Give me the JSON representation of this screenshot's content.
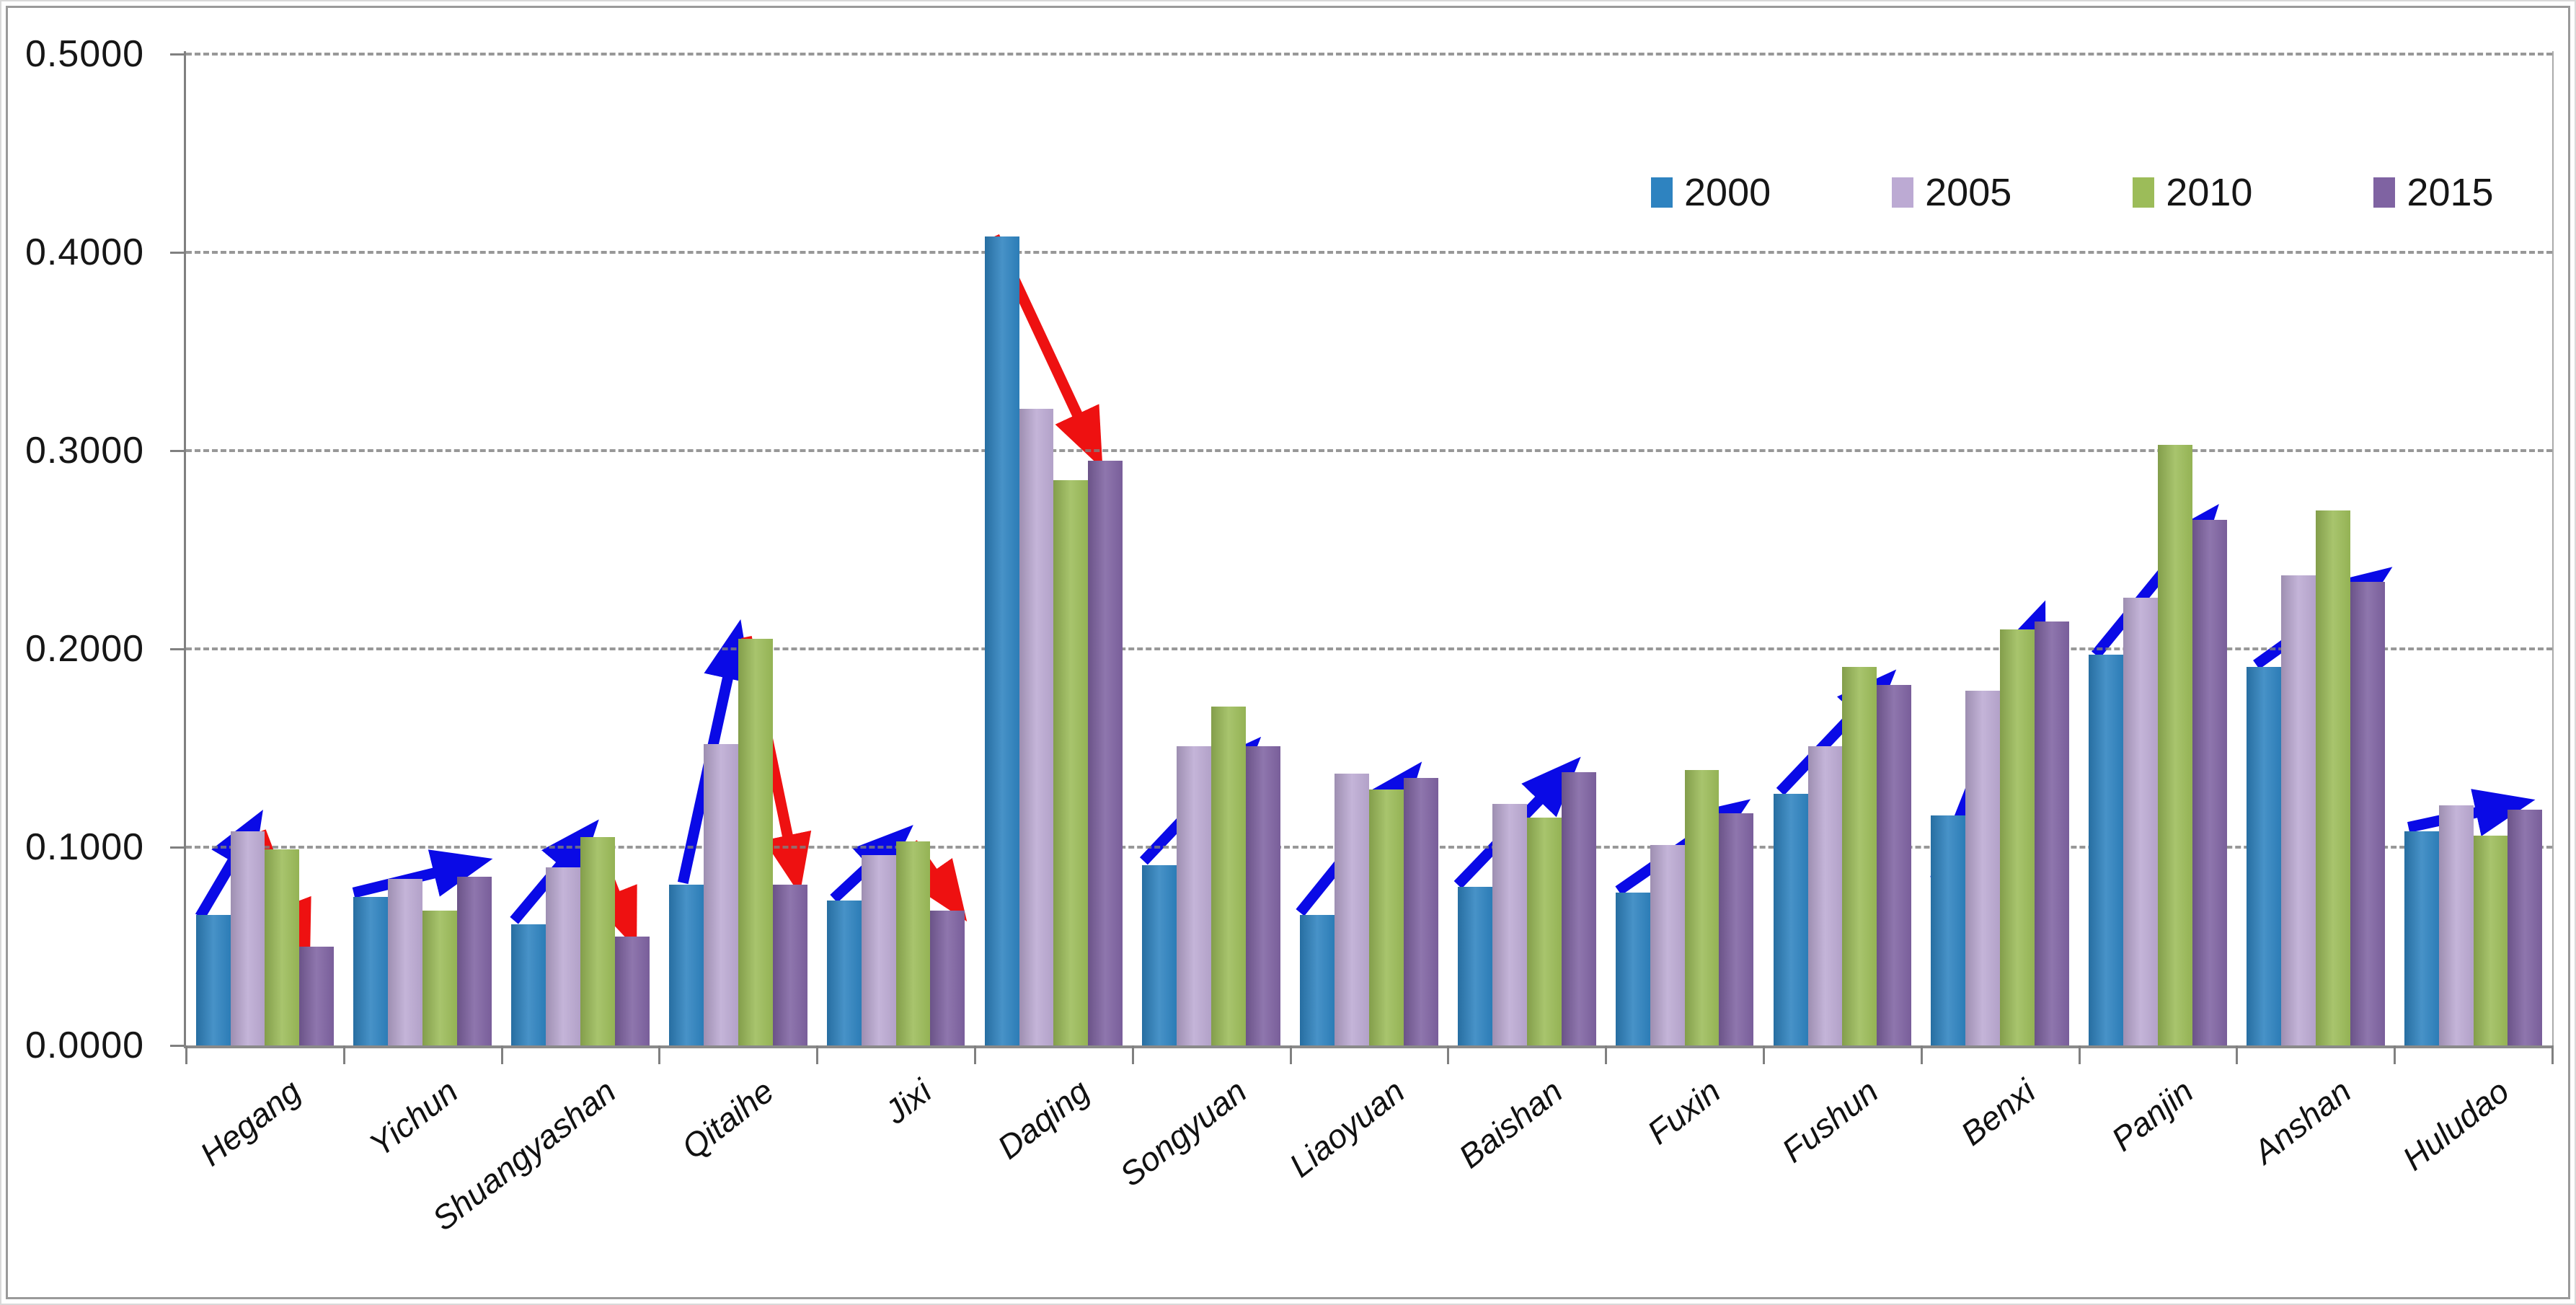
{
  "chart_data": {
    "type": "bar",
    "title": "",
    "xlabel": "",
    "ylabel": "",
    "categories": [
      "Hegang",
      "Yichun",
      "Shuangyashan",
      "Qitaihe",
      "Jixi",
      "Daqing",
      "Songyuan",
      "Liaoyuan",
      "Baishan",
      "Fuxin",
      "Fushun",
      "Benxi",
      "Panjin",
      "Anshan",
      "Huludao"
    ],
    "series": [
      {
        "name": "2000",
        "color": "#2e83c0",
        "values": [
          0.066,
          0.075,
          0.061,
          0.081,
          0.073,
          0.408,
          0.091,
          0.066,
          0.08,
          0.077,
          0.127,
          0.116,
          0.197,
          0.191,
          0.108
        ]
      },
      {
        "name": "2005",
        "color": "#bcaad3",
        "values": [
          0.108,
          0.084,
          0.09,
          0.152,
          0.096,
          0.321,
          0.151,
          0.137,
          0.122,
          0.101,
          0.151,
          0.179,
          0.226,
          0.237,
          0.121
        ]
      },
      {
        "name": "2010",
        "color": "#9cbc59",
        "values": [
          0.099,
          0.068,
          0.105,
          0.205,
          0.103,
          0.285,
          0.171,
          0.129,
          0.115,
          0.139,
          0.191,
          0.21,
          0.303,
          0.27,
          0.106
        ]
      },
      {
        "name": "2015",
        "color": "#7f63a2",
        "values": [
          0.05,
          0.085,
          0.055,
          0.081,
          0.068,
          0.295,
          0.151,
          0.135,
          0.138,
          0.117,
          0.182,
          0.214,
          0.265,
          0.234,
          0.119
        ]
      }
    ],
    "ylim": [
      0,
      0.5
    ],
    "ytick_labels": [
      "0.0000",
      "0.1000",
      "0.2000",
      "0.3000",
      "0.4000",
      "0.5000"
    ],
    "grid": "horizontal dashed gridlines on",
    "legend_position": "top-right inside plot",
    "arrow_colors": {
      "up": "#0a0ae6",
      "down": "#ee1111"
    },
    "annotations": [
      {
        "group": 0,
        "direction": "up",
        "x1": 0.03,
        "v1": 0.065,
        "x2": 0.42,
        "v2": 0.111
      },
      {
        "group": 0,
        "direction": "down",
        "x1": 0.47,
        "v1": 0.108,
        "x2": 0.78,
        "v2": 0.051
      },
      {
        "group": 1,
        "direction": "up",
        "x1": 0.0,
        "v1": 0.077,
        "x2": 0.88,
        "v2": 0.092
      },
      {
        "group": 2,
        "direction": "up",
        "x1": 0.02,
        "v1": 0.063,
        "x2": 0.55,
        "v2": 0.107
      },
      {
        "group": 2,
        "direction": "down",
        "x1": 0.6,
        "v1": 0.103,
        "x2": 0.86,
        "v2": 0.057
      },
      {
        "group": 3,
        "direction": "up",
        "x1": 0.1,
        "v1": 0.082,
        "x2": 0.49,
        "v2": 0.206
      },
      {
        "group": 3,
        "direction": "down",
        "x1": 0.56,
        "v1": 0.206,
        "x2": 0.92,
        "v2": 0.085
      },
      {
        "group": 4,
        "direction": "up",
        "x1": 0.05,
        "v1": 0.074,
        "x2": 0.53,
        "v2": 0.105
      },
      {
        "group": 4,
        "direction": "down",
        "x1": 0.62,
        "v1": 0.102,
        "x2": 0.94,
        "v2": 0.07
      },
      {
        "group": 5,
        "direction": "down",
        "x1": 0.07,
        "v1": 0.408,
        "x2": 0.8,
        "v2": 0.299
      },
      {
        "group": 6,
        "direction": "up",
        "x1": 0.01,
        "v1": 0.093,
        "x2": 0.77,
        "v2": 0.149
      },
      {
        "group": 7,
        "direction": "up",
        "x1": 0.0,
        "v1": 0.067,
        "x2": 0.8,
        "v2": 0.136
      },
      {
        "group": 8,
        "direction": "up",
        "x1": 0.0,
        "v1": 0.081,
        "x2": 0.8,
        "v2": 0.139
      },
      {
        "group": 9,
        "direction": "up",
        "x1": 0.02,
        "v1": 0.078,
        "x2": 0.87,
        "v2": 0.119
      },
      {
        "group": 10,
        "direction": "up",
        "x1": 0.05,
        "v1": 0.128,
        "x2": 0.8,
        "v2": 0.183
      },
      {
        "group": 11,
        "direction": "up",
        "x1": 0.03,
        "v1": 0.084,
        "x2": 0.78,
        "v2": 0.216
      },
      {
        "group": 12,
        "direction": "up",
        "x1": 0.05,
        "v1": 0.197,
        "x2": 0.86,
        "v2": 0.266
      },
      {
        "group": 13,
        "direction": "up",
        "x1": 0.07,
        "v1": 0.192,
        "x2": 0.95,
        "v2": 0.236
      },
      {
        "group": 14,
        "direction": "up",
        "x1": 0.03,
        "v1": 0.11,
        "x2": 0.82,
        "v2": 0.122
      }
    ]
  }
}
